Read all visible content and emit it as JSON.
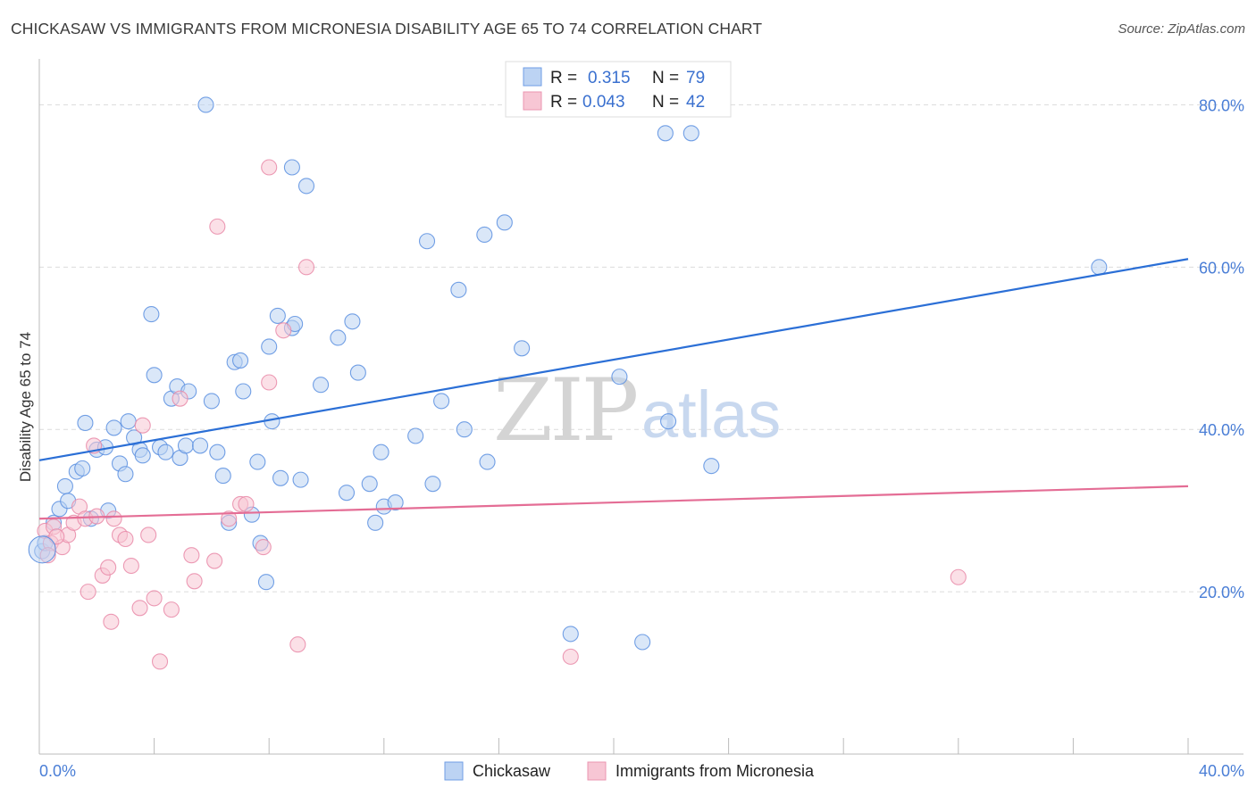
{
  "header": {
    "title": "CHICKASAW VS IMMIGRANTS FROM MICRONESIA DISABILITY AGE 65 TO 74 CORRELATION CHART",
    "source": "Source: ZipAtlas.com"
  },
  "watermark": {
    "zip": "ZIP",
    "atlas": "atlas"
  },
  "legend": {
    "rows": [
      {
        "r_label": "R = ",
        "r_value": "0.315",
        "n_label": "N = ",
        "n_value": "79",
        "color": "#a9c8f0"
      },
      {
        "r_label": "R = ",
        "r_value": "0.043",
        "n_label": "N = ",
        "n_value": "42",
        "color": "#f5b8c8"
      }
    ]
  },
  "chart_data": {
    "type": "scatter",
    "title": "CHICKASAW VS IMMIGRANTS FROM MICRONESIA DISABILITY AGE 65 TO 74 CORRELATION CHART",
    "xlabel": "",
    "ylabel": "Disability Age 65 to 74",
    "xlim": [
      0,
      40
    ],
    "ylim": [
      0,
      85
    ],
    "x_tick_labels": [
      "0.0%",
      "40.0%"
    ],
    "y_ticks": [
      20,
      40,
      60,
      80
    ],
    "y_tick_labels": [
      "20.0%",
      "40.0%",
      "60.0%",
      "80.0%"
    ],
    "grid": true,
    "legend_position": "top-center",
    "bottom_legend": [
      "Chickasaw",
      "Immigrants from Micronesia"
    ],
    "series": [
      {
        "name": "Chickasaw",
        "color": "#5b8fe0",
        "fill": "#bcd3f3",
        "line_color": "#2b6fd6",
        "trend": {
          "x": [
            0,
            40
          ],
          "y": [
            36.2,
            61.0
          ]
        },
        "points": [
          [
            0.1,
            25.0
          ],
          [
            0.2,
            26.0
          ],
          [
            0.5,
            28.5
          ],
          [
            0.7,
            30.2
          ],
          [
            0.9,
            33.0
          ],
          [
            1.0,
            31.2
          ],
          [
            1.3,
            34.8
          ],
          [
            1.5,
            35.2
          ],
          [
            1.6,
            40.8
          ],
          [
            1.8,
            29.0
          ],
          [
            2.0,
            37.5
          ],
          [
            2.3,
            37.8
          ],
          [
            2.4,
            30.0
          ],
          [
            2.6,
            40.2
          ],
          [
            2.8,
            35.8
          ],
          [
            3.0,
            34.5
          ],
          [
            3.1,
            41.0
          ],
          [
            3.3,
            39.0
          ],
          [
            3.5,
            37.5
          ],
          [
            3.6,
            36.8
          ],
          [
            3.9,
            54.2
          ],
          [
            4.0,
            46.7
          ],
          [
            4.2,
            37.8
          ],
          [
            4.4,
            37.2
          ],
          [
            4.6,
            43.8
          ],
          [
            4.8,
            45.3
          ],
          [
            4.9,
            36.5
          ],
          [
            5.1,
            38.0
          ],
          [
            5.2,
            44.7
          ],
          [
            5.6,
            38.0
          ],
          [
            6.0,
            43.5
          ],
          [
            6.2,
            37.2
          ],
          [
            6.4,
            34.3
          ],
          [
            6.6,
            28.5
          ],
          [
            6.8,
            48.3
          ],
          [
            7.0,
            48.5
          ],
          [
            7.1,
            44.7
          ],
          [
            7.4,
            29.5
          ],
          [
            7.6,
            36.0
          ],
          [
            7.7,
            26.0
          ],
          [
            7.9,
            21.2
          ],
          [
            8.0,
            50.2
          ],
          [
            8.1,
            41.0
          ],
          [
            8.3,
            54.0
          ],
          [
            8.4,
            34.0
          ],
          [
            8.8,
            52.5
          ],
          [
            8.9,
            53.0
          ],
          [
            9.1,
            33.8
          ],
          [
            9.3,
            70.0
          ],
          [
            9.8,
            45.5
          ],
          [
            10.4,
            51.3
          ],
          [
            10.7,
            32.2
          ],
          [
            10.9,
            53.3
          ],
          [
            11.1,
            47.0
          ],
          [
            11.5,
            33.3
          ],
          [
            11.7,
            28.5
          ],
          [
            11.9,
            37.2
          ],
          [
            12.0,
            30.5
          ],
          [
            12.4,
            31.0
          ],
          [
            13.1,
            39.2
          ],
          [
            13.5,
            63.2
          ],
          [
            13.7,
            33.3
          ],
          [
            14.0,
            43.5
          ],
          [
            14.6,
            57.2
          ],
          [
            14.8,
            40.0
          ],
          [
            15.5,
            64.0
          ],
          [
            15.6,
            36.0
          ],
          [
            16.2,
            65.5
          ],
          [
            16.8,
            50.0
          ],
          [
            18.5,
            14.8
          ],
          [
            20.2,
            46.5
          ],
          [
            21.0,
            13.8
          ],
          [
            21.9,
            41.0
          ],
          [
            23.4,
            35.5
          ],
          [
            36.9,
            60.0
          ],
          [
            5.8,
            80.0
          ],
          [
            8.8,
            72.3
          ],
          [
            21.8,
            76.5
          ],
          [
            22.7,
            76.5
          ]
        ]
      },
      {
        "name": "Immigrants from Micronesia",
        "color": "#e98aa8",
        "fill": "#f7c6d4",
        "line_color": "#e46d95",
        "trend": {
          "x": [
            0,
            40
          ],
          "y": [
            29.0,
            33.0
          ]
        },
        "points": [
          [
            0.2,
            27.5
          ],
          [
            0.4,
            26.0
          ],
          [
            0.5,
            28.0
          ],
          [
            0.8,
            25.5
          ],
          [
            1.0,
            27.0
          ],
          [
            1.2,
            28.5
          ],
          [
            1.4,
            30.5
          ],
          [
            1.6,
            29.0
          ],
          [
            1.7,
            20.0
          ],
          [
            1.9,
            38.0
          ],
          [
            2.0,
            29.3
          ],
          [
            2.2,
            22.0
          ],
          [
            2.4,
            23.0
          ],
          [
            2.5,
            16.3
          ],
          [
            2.6,
            29.0
          ],
          [
            2.8,
            27.0
          ],
          [
            3.0,
            26.5
          ],
          [
            3.2,
            23.2
          ],
          [
            3.5,
            18.0
          ],
          [
            3.6,
            40.5
          ],
          [
            3.8,
            27.0
          ],
          [
            4.0,
            19.2
          ],
          [
            4.2,
            11.4
          ],
          [
            4.6,
            17.8
          ],
          [
            4.9,
            43.8
          ],
          [
            5.3,
            24.5
          ],
          [
            5.4,
            21.3
          ],
          [
            6.1,
            23.8
          ],
          [
            6.2,
            65.0
          ],
          [
            6.6,
            29.0
          ],
          [
            7.0,
            30.8
          ],
          [
            7.2,
            30.8
          ],
          [
            7.8,
            25.5
          ],
          [
            8.0,
            45.8
          ],
          [
            8.0,
            72.3
          ],
          [
            8.5,
            52.2
          ],
          [
            9.0,
            13.5
          ],
          [
            9.3,
            60.0
          ],
          [
            18.5,
            12.0
          ],
          [
            32.0,
            21.8
          ],
          [
            0.3,
            24.5
          ],
          [
            0.6,
            26.8
          ]
        ]
      }
    ]
  }
}
